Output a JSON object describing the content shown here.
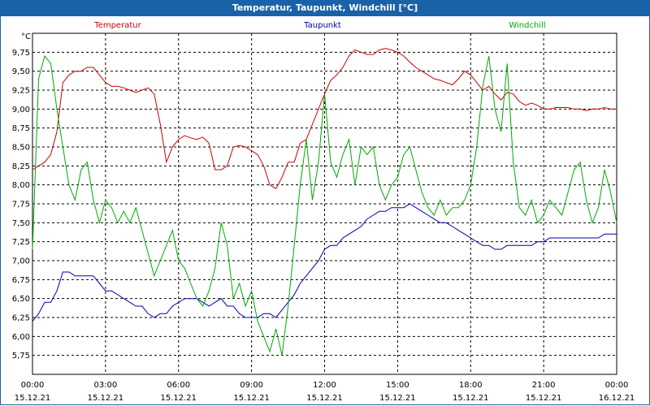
{
  "window": {
    "title": "Temperatur, Taupunkt, Windchill [°C]"
  },
  "chart_data": {
    "type": "line",
    "title": "Temperatur, Taupunkt, Windchill [°C]",
    "ylabel": "°C",
    "xlabel": "",
    "ylim": [
      5.5,
      10.0
    ],
    "xlim": [
      0,
      24
    ],
    "grid": true,
    "y_ticks": [
      "5,75",
      "6,00",
      "6,25",
      "6,50",
      "6,75",
      "7,00",
      "7,25",
      "7,50",
      "7,75",
      "8,00",
      "8,25",
      "8,50",
      "8,75",
      "9,00",
      "9,25",
      "9,50",
      "9,75"
    ],
    "y_tick_values": [
      5.75,
      6.0,
      6.25,
      6.5,
      6.75,
      7.0,
      7.25,
      7.5,
      7.75,
      8.0,
      8.25,
      8.5,
      8.75,
      9.0,
      9.25,
      9.5,
      9.75
    ],
    "x_ticks": [
      {
        "time": "00:00",
        "date": "15.12.21"
      },
      {
        "time": "03:00",
        "date": "15.12.21"
      },
      {
        "time": "06:00",
        "date": "15.12.21"
      },
      {
        "time": "09:00",
        "date": "15.12.21"
      },
      {
        "time": "12:00",
        "date": "15.12.21"
      },
      {
        "time": "15:00",
        "date": "15.12.21"
      },
      {
        "time": "18:00",
        "date": "15.12.21"
      },
      {
        "time": "21:00",
        "date": "15.12.21"
      },
      {
        "time": "00:00",
        "date": "16.12.21"
      }
    ],
    "x_tick_values": [
      0,
      3,
      6,
      9,
      12,
      15,
      18,
      21,
      24
    ],
    "series": [
      {
        "name": "Temperatur",
        "color": "#cc0000",
        "x": [
          0,
          0.25,
          0.5,
          0.75,
          1,
          1.25,
          1.5,
          1.75,
          2,
          2.25,
          2.5,
          2.75,
          3,
          3.25,
          3.5,
          3.75,
          4,
          4.25,
          4.5,
          4.75,
          5,
          5.25,
          5.5,
          5.75,
          6,
          6.25,
          6.5,
          6.75,
          7,
          7.25,
          7.5,
          7.75,
          8,
          8.25,
          8.5,
          8.75,
          9,
          9.25,
          9.5,
          9.75,
          10,
          10.25,
          10.5,
          10.75,
          11,
          11.25,
          11.5,
          11.75,
          12,
          12.25,
          12.5,
          12.75,
          13,
          13.25,
          13.5,
          13.75,
          14,
          14.25,
          14.5,
          14.75,
          15,
          15.25,
          15.5,
          15.75,
          16,
          16.25,
          16.5,
          16.75,
          17,
          17.25,
          17.5,
          17.75,
          18,
          18.25,
          18.5,
          18.75,
          19,
          19.25,
          19.5,
          19.75,
          20,
          20.25,
          20.5,
          20.75,
          21,
          21.25,
          21.5,
          21.75,
          22,
          22.25,
          22.5,
          22.75,
          23,
          23.25,
          23.5,
          23.75,
          24
        ],
        "values": [
          8.2,
          8.25,
          8.3,
          8.4,
          8.7,
          9.35,
          9.45,
          9.5,
          9.5,
          9.55,
          9.55,
          9.45,
          9.35,
          9.3,
          9.3,
          9.28,
          9.25,
          9.22,
          9.25,
          9.28,
          9.2,
          8.8,
          8.3,
          8.5,
          8.6,
          8.65,
          8.62,
          8.6,
          8.63,
          8.55,
          8.2,
          8.2,
          8.25,
          8.5,
          8.52,
          8.5,
          8.45,
          8.4,
          8.25,
          8.0,
          7.95,
          8.1,
          8.3,
          8.3,
          8.55,
          8.6,
          8.8,
          9.0,
          9.2,
          9.38,
          9.45,
          9.55,
          9.7,
          9.78,
          9.75,
          9.72,
          9.72,
          9.78,
          9.8,
          9.78,
          9.75,
          9.7,
          9.62,
          9.55,
          9.5,
          9.45,
          9.4,
          9.38,
          9.35,
          9.32,
          9.4,
          9.5,
          9.45,
          9.35,
          9.25,
          9.3,
          9.2,
          9.12,
          9.22,
          9.2,
          9.1,
          9.05,
          9.08,
          9.05,
          9.0,
          9.0,
          9.02,
          9.02,
          9.02,
          9.0,
          9.0,
          8.98,
          9.0,
          9.0,
          9.02,
          9.0,
          9.0
        ]
      },
      {
        "name": "Taupunkt",
        "color": "#0000aa",
        "x": [
          0,
          0.25,
          0.5,
          0.75,
          1,
          1.25,
          1.5,
          1.75,
          2,
          2.25,
          2.5,
          2.75,
          3,
          3.25,
          3.5,
          3.75,
          4,
          4.25,
          4.5,
          4.75,
          5,
          5.25,
          5.5,
          5.75,
          6,
          6.25,
          6.5,
          6.75,
          7,
          7.25,
          7.5,
          7.75,
          8,
          8.25,
          8.5,
          8.75,
          9,
          9.25,
          9.5,
          9.75,
          10,
          10.25,
          10.5,
          10.75,
          11,
          11.25,
          11.5,
          11.75,
          12,
          12.25,
          12.5,
          12.75,
          13,
          13.25,
          13.5,
          13.75,
          14,
          14.25,
          14.5,
          14.75,
          15,
          15.25,
          15.5,
          15.75,
          16,
          16.25,
          16.5,
          16.75,
          17,
          17.25,
          17.5,
          17.75,
          18,
          18.25,
          18.5,
          18.75,
          19,
          19.25,
          19.5,
          19.75,
          20,
          20.25,
          20.5,
          20.75,
          21,
          21.25,
          21.5,
          21.75,
          22,
          22.25,
          22.5,
          22.75,
          23,
          23.25,
          23.5,
          23.75,
          24
        ],
        "values": [
          6.2,
          6.3,
          6.45,
          6.45,
          6.6,
          6.85,
          6.85,
          6.8,
          6.8,
          6.8,
          6.8,
          6.7,
          6.6,
          6.6,
          6.55,
          6.5,
          6.45,
          6.4,
          6.4,
          6.3,
          6.25,
          6.3,
          6.3,
          6.4,
          6.45,
          6.5,
          6.5,
          6.5,
          6.45,
          6.4,
          6.45,
          6.5,
          6.4,
          6.4,
          6.3,
          6.25,
          6.25,
          6.25,
          6.3,
          6.3,
          6.25,
          6.35,
          6.45,
          6.55,
          6.7,
          6.8,
          6.9,
          7.0,
          7.15,
          7.2,
          7.2,
          7.3,
          7.35,
          7.4,
          7.45,
          7.55,
          7.6,
          7.65,
          7.65,
          7.7,
          7.7,
          7.7,
          7.75,
          7.7,
          7.65,
          7.6,
          7.55,
          7.5,
          7.5,
          7.45,
          7.4,
          7.35,
          7.3,
          7.25,
          7.2,
          7.2,
          7.15,
          7.15,
          7.2,
          7.2,
          7.2,
          7.2,
          7.2,
          7.25,
          7.25,
          7.3,
          7.3,
          7.3,
          7.3,
          7.3,
          7.3,
          7.3,
          7.3,
          7.3,
          7.35,
          7.35,
          7.35
        ]
      },
      {
        "name": "Windchill",
        "color": "#00aa00",
        "x": [
          0,
          0.25,
          0.5,
          0.75,
          1,
          1.25,
          1.5,
          1.75,
          2,
          2.25,
          2.5,
          2.75,
          3,
          3.25,
          3.5,
          3.75,
          4,
          4.25,
          4.5,
          4.75,
          5,
          5.25,
          5.5,
          5.75,
          6,
          6.25,
          6.5,
          6.75,
          7,
          7.25,
          7.5,
          7.75,
          8,
          8.25,
          8.5,
          8.75,
          9,
          9.25,
          9.5,
          9.75,
          10,
          10.25,
          10.5,
          10.75,
          11,
          11.25,
          11.5,
          11.75,
          12,
          12.25,
          12.5,
          12.75,
          13,
          13.25,
          13.5,
          13.75,
          14,
          14.25,
          14.5,
          14.75,
          15,
          15.25,
          15.5,
          15.75,
          16,
          16.25,
          16.5,
          16.75,
          17,
          17.25,
          17.5,
          17.75,
          18,
          18.25,
          18.5,
          18.75,
          19,
          19.25,
          19.5,
          19.75,
          20,
          20.25,
          20.5,
          20.75,
          21,
          21.25,
          21.5,
          21.75,
          22,
          22.25,
          22.5,
          22.75,
          23,
          23.25,
          23.5,
          23.75,
          24
        ],
        "values": [
          7.15,
          9.4,
          9.7,
          9.6,
          9.0,
          8.5,
          8.0,
          7.8,
          8.2,
          8.3,
          7.8,
          7.5,
          7.8,
          7.7,
          7.5,
          7.65,
          7.5,
          7.7,
          7.4,
          7.1,
          6.8,
          7.0,
          7.2,
          7.4,
          7.0,
          6.9,
          6.7,
          6.5,
          6.4,
          6.6,
          6.9,
          7.5,
          7.2,
          6.5,
          6.7,
          6.4,
          6.6,
          6.2,
          6.0,
          5.8,
          6.1,
          5.75,
          6.4,
          7.2,
          8.0,
          8.6,
          7.8,
          8.3,
          9.2,
          8.3,
          8.1,
          8.4,
          8.6,
          8.0,
          8.5,
          8.4,
          8.5,
          8.0,
          7.8,
          8.0,
          8.1,
          8.4,
          8.5,
          8.2,
          7.9,
          7.7,
          7.6,
          7.8,
          7.6,
          7.7,
          7.7,
          7.8,
          8.0,
          8.5,
          9.3,
          9.7,
          9.0,
          8.7,
          9.6,
          8.3,
          7.7,
          7.6,
          7.8,
          7.5,
          7.6,
          7.8,
          7.7,
          7.6,
          7.9,
          8.2,
          8.3,
          7.8,
          7.5,
          7.7,
          8.2,
          7.9,
          7.5
        ]
      }
    ]
  }
}
